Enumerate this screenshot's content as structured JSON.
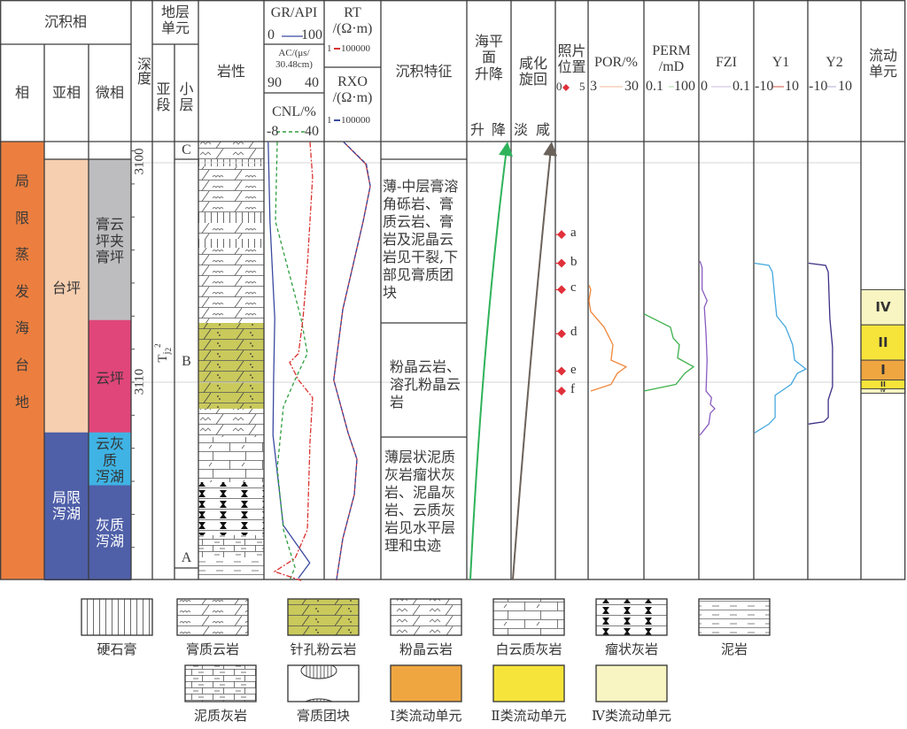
{
  "header": {
    "facies_title": "沉积相",
    "facies": "相",
    "subfacies": "亚相",
    "microfacies": "微相",
    "depth": "深度",
    "strat_unit": "地层\n单元",
    "sub_member": "亚\n段",
    "small_layer": "小\n层",
    "lithology": "岩性",
    "gr": {
      "label": "GR/API",
      "min": "0",
      "max": "100",
      "color": "#3a4aa0"
    },
    "ac": {
      "label": "AC/(μs/\n30.48cm)",
      "min": "90",
      "max": "40"
    },
    "cnl": {
      "label": "CNL/%",
      "min": "-8",
      "max": "40",
      "color": "#2e9e3e"
    },
    "rt": {
      "label": "RT\n/(Ω·m)",
      "min": "1",
      "max": "100000",
      "color": "#d9322f"
    },
    "rxo": {
      "label": "RXO\n/(Ω·m)",
      "min": "1",
      "max": "100000",
      "color": "#3a4aa0"
    },
    "features": "沉积特征",
    "sea_level": {
      "label": "海平\n面\n升降",
      "left": "升",
      "right": "降"
    },
    "salinity": {
      "label": "咸化\n旋回",
      "left": "淡",
      "right": "咸"
    },
    "photo": {
      "label": "照片\n位置",
      "min": "0",
      "max": "5"
    },
    "por": {
      "label": "POR/%",
      "min": "3",
      "max": "30"
    },
    "perm": {
      "label": "PERM\n/mD",
      "min": "0.1",
      "max": "100"
    },
    "fzi": {
      "label": "FZI",
      "min": "0",
      "max": "0.1"
    },
    "y1": {
      "label": "Y1",
      "min": "-10",
      "max": "10"
    },
    "y2": {
      "label": "Y2",
      "min": "-10",
      "max": "10"
    },
    "flow_unit": "流动\n单元"
  },
  "facies_col": {
    "label": "局\n\n限\n\n蒸\n\n发\n\n海\n\n台\n\n地",
    "color": "#ec7f3f"
  },
  "subfacies_col": [
    {
      "label": "台坪",
      "top": 3100.0,
      "bottom": 3112.4,
      "color": "#f6cfb0"
    },
    {
      "label": "局限\n泻湖",
      "top": 3112.4,
      "bottom": 3119.0,
      "color": "#4f5fa8"
    }
  ],
  "microfacies_col": [
    {
      "label": "膏云\n坪夹\n膏坪",
      "top": 3100.0,
      "bottom": 3107.3,
      "color": "#bdbdc0"
    },
    {
      "label": "云坪",
      "top": 3107.3,
      "bottom": 3112.4,
      "color": "#e0467a"
    },
    {
      "label": "云灰\n质\n泻湖",
      "top": 3112.4,
      "bottom": 3114.8,
      "color": "#3fb3e4"
    },
    {
      "label": "灰质\n泻湖",
      "top": 3114.8,
      "bottom": 3119.0,
      "color": "#4f5fa8"
    }
  ],
  "depth_labels": [
    "3100",
    "3110"
  ],
  "strat": {
    "sub_member": {
      "name": "T",
      "j": "j",
      "sub": "2",
      "sup": "2"
    },
    "layers": [
      "C",
      "B",
      "A"
    ]
  },
  "features": [
    "薄-中层膏溶角砾岩、膏质云岩、膏岩及泥晶云岩见干裂,下部见膏质团块",
    "粉晶云岩、溶孔粉晶云岩",
    "薄层状泥质灰岩瘤状灰岩、泥晶灰岩、云质灰岩见水平层理和虫迹"
  ],
  "photos": [
    {
      "label": "a",
      "depth": 3103.3
    },
    {
      "label": "b",
      "depth": 3104.6
    },
    {
      "label": "c",
      "depth": 3105.8
    },
    {
      "label": "d",
      "depth": 3107.8
    },
    {
      "label": "e",
      "depth": 3109.5
    },
    {
      "label": "f",
      "depth": 3110.4
    }
  ],
  "photo_color": "#e0303a",
  "curves": {
    "gr": {
      "color": "#3a4aa0",
      "points": [
        [
          3099.1,
          7
        ],
        [
          3102.7,
          10
        ],
        [
          3107.1,
          18
        ],
        [
          3109.9,
          16
        ],
        [
          3112.4,
          15
        ],
        [
          3116.5,
          32
        ],
        [
          3118.2,
          76
        ],
        [
          3118.9,
          57
        ]
      ]
    },
    "cnl": {
      "color": "#2e9e3e",
      "points": [
        [
          3099.1,
          2.6
        ],
        [
          3102.7,
          1.2
        ],
        [
          3107.1,
          21.6
        ],
        [
          3108.7,
          26.6
        ],
        [
          3109.9,
          16.7
        ],
        [
          3111.1,
          7.5
        ],
        [
          3113.9,
          2.6
        ],
        [
          3116.7,
          7.5
        ],
        [
          3118.4,
          16.7
        ],
        [
          3119.0,
          12.5
        ]
      ]
    },
    "ac": {
      "color": "#d9322f",
      "points": [
        [
          3099.1,
          51.8
        ],
        [
          3100.7,
          49.6
        ],
        [
          3104.7,
          54
        ],
        [
          3107.1,
          57.6
        ],
        [
          3108.7,
          61.3
        ],
        [
          3109.1,
          68.7
        ],
        [
          3109.9,
          61.3
        ],
        [
          3110.7,
          49.6
        ],
        [
          3112.7,
          51.8
        ],
        [
          3116.7,
          54
        ],
        [
          3118.0,
          64.3
        ],
        [
          3118.6,
          81.2
        ],
        [
          3119.0,
          59.1
        ]
      ]
    },
    "rt": {
      "color": "#d9322f",
      "points": [
        [
          3099.1,
          52
        ],
        [
          3100.1,
          4700
        ],
        [
          3101.1,
          11500
        ],
        [
          3102.7,
          2750
        ],
        [
          3106.7,
          44
        ],
        [
          3109.9,
          7
        ],
        [
          3112.3,
          129
        ],
        [
          3113.5,
          776
        ],
        [
          3115.1,
          457
        ],
        [
          3117.1,
          44
        ],
        [
          3119.0,
          12
        ]
      ]
    },
    "rxo": {
      "color": "#3a4aa0",
      "points": [
        [
          3099.1,
          52
        ],
        [
          3100.1,
          5200
        ],
        [
          3101.1,
          11500
        ],
        [
          3102.7,
          2750
        ],
        [
          3106.7,
          44
        ],
        [
          3109.9,
          7
        ],
        [
          3112.3,
          129
        ],
        [
          3113.5,
          776
        ],
        [
          3115.1,
          457
        ],
        [
          3117.1,
          44
        ],
        [
          3119.0,
          12
        ]
      ]
    },
    "por": {
      "color": "#f0873a",
      "points": [
        [
          3105.6,
          3.4
        ],
        [
          3105.8,
          4.3
        ],
        [
          3106.3,
          3.4
        ],
        [
          3106.8,
          4.3
        ],
        [
          3107.5,
          10.7
        ],
        [
          3108.3,
          15
        ],
        [
          3109.0,
          14.1
        ],
        [
          3109.3,
          21.4
        ],
        [
          3109.6,
          17.1
        ],
        [
          3110.1,
          14.1
        ],
        [
          3110.4,
          4.3
        ]
      ]
    },
    "perm": {
      "color": "#3bb04a",
      "points": [
        [
          3106.9,
          0.1
        ],
        [
          3107.5,
          2.8
        ],
        [
          3108.0,
          4.0
        ],
        [
          3108.3,
          8.6
        ],
        [
          3108.9,
          6.9
        ],
        [
          3109.3,
          51
        ],
        [
          3109.6,
          17
        ],
        [
          3110.1,
          5.5
        ],
        [
          3110.4,
          0.1
        ]
      ]
    },
    "fzi": {
      "color": "#8a5cc0",
      "points": [
        [
          3104.5,
          0.002
        ],
        [
          3104.8,
          0.006
        ],
        [
          3105.8,
          0.006
        ],
        [
          3106.3,
          0.015
        ],
        [
          3106.6,
          0.01
        ],
        [
          3107.8,
          0.013
        ],
        [
          3109.0,
          0.015
        ],
        [
          3110.4,
          0.013
        ],
        [
          3110.7,
          0.023
        ],
        [
          3111.0,
          0.021
        ],
        [
          3111.2,
          0.029
        ],
        [
          3111.4,
          0.021
        ],
        [
          3111.9,
          0.018
        ],
        [
          3112.4,
          0.002
        ]
      ]
    },
    "y1": {
      "color": "#46a8de",
      "points": [
        [
          3104.6,
          -9.7
        ],
        [
          3104.7,
          -4.4
        ],
        [
          3105.0,
          -3.1
        ],
        [
          3106.3,
          -2.1
        ],
        [
          3107.0,
          -1.5
        ],
        [
          3107.5,
          1.8
        ],
        [
          3108.3,
          4.4
        ],
        [
          3109.0,
          5.1
        ],
        [
          3109.4,
          9.3
        ],
        [
          3109.6,
          6.1
        ],
        [
          3110.1,
          3.8
        ],
        [
          3110.6,
          -2.1
        ],
        [
          3111.6,
          -2.1
        ],
        [
          3111.9,
          -4.4
        ],
        [
          3112.3,
          -9.7
        ]
      ]
    },
    "y2": {
      "color": "#3d2f86",
      "points": [
        [
          3104.6,
          -9.7
        ],
        [
          3104.7,
          -3.3
        ],
        [
          3105.0,
          -2.3
        ],
        [
          3107.1,
          -1.7
        ],
        [
          3108.4,
          -0.7
        ],
        [
          3110.2,
          -0.7
        ],
        [
          3110.8,
          -2.3
        ],
        [
          3111.6,
          -2.3
        ],
        [
          3111.8,
          -4
        ],
        [
          3111.9,
          -9.7
        ]
      ]
    }
  },
  "flow_units": [
    {
      "label": "IV",
      "top": 3105.8,
      "bottom": 3107.4,
      "color": "#f8f5c2"
    },
    {
      "label": "II",
      "top": 3107.4,
      "bottom": 3109.0,
      "color": "#f7e43a"
    },
    {
      "label": "I",
      "top": 3109.0,
      "bottom": 3109.9,
      "color": "#efa640"
    },
    {
      "label": "II",
      "top": 3109.9,
      "bottom": 3110.3,
      "color": "#f7e43a"
    },
    {
      "label": "IV",
      "top": 3110.3,
      "bottom": 3110.5,
      "color": "#f8f5c2"
    }
  ],
  "sea_level_color": "#2fb35a",
  "salinity_color": "#6b625a",
  "legend": [
    {
      "label": "硬石膏",
      "pattern": "anhydrite"
    },
    {
      "label": "膏质云岩",
      "pattern": "gypdol"
    },
    {
      "label": "针孔粉云岩",
      "pattern": "pinhole"
    },
    {
      "label": "粉晶云岩",
      "pattern": "silt"
    },
    {
      "label": "白云质灰岩",
      "pattern": "dolls"
    },
    {
      "label": "瘤状灰岩",
      "pattern": "nodular"
    },
    {
      "label": "泥岩",
      "pattern": "mud"
    },
    {
      "label": "泥质灰岩",
      "pattern": "marly"
    },
    {
      "label": "膏质团块",
      "pattern": "nodule"
    },
    {
      "label": "Ⅰ类流动单元",
      "pattern": "#efa640"
    },
    {
      "label": "Ⅱ类流动单元",
      "pattern": "#f7e43a"
    },
    {
      "label": "Ⅳ类流动单元",
      "pattern": "#f8f5c2"
    }
  ]
}
